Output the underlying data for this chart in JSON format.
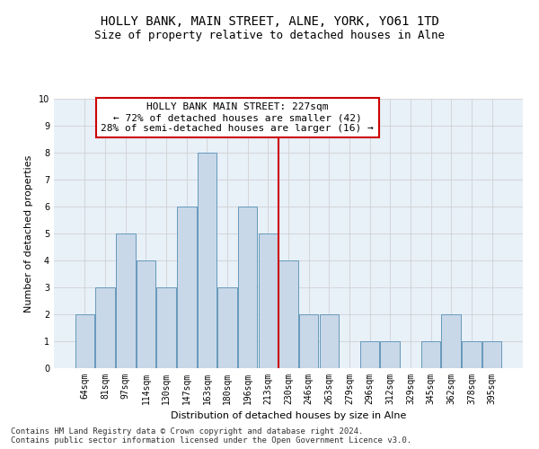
{
  "title": "HOLLY BANK, MAIN STREET, ALNE, YORK, YO61 1TD",
  "subtitle": "Size of property relative to detached houses in Alne",
  "xlabel": "Distribution of detached houses by size in Alne",
  "ylabel": "Number of detached properties",
  "categories": [
    "64sqm",
    "81sqm",
    "97sqm",
    "114sqm",
    "130sqm",
    "147sqm",
    "163sqm",
    "180sqm",
    "196sqm",
    "213sqm",
    "230sqm",
    "246sqm",
    "263sqm",
    "279sqm",
    "296sqm",
    "312sqm",
    "329sqm",
    "345sqm",
    "362sqm",
    "378sqm",
    "395sqm"
  ],
  "values": [
    2,
    3,
    5,
    4,
    3,
    6,
    8,
    3,
    6,
    5,
    4,
    2,
    2,
    0,
    1,
    1,
    0,
    1,
    2,
    1,
    1
  ],
  "bar_color": "#c8d8e8",
  "bar_edge_color": "#6699bb",
  "grid_color": "#cccccc",
  "vline_x_index": 10,
  "vline_color": "#cc0000",
  "annotation_text": "HOLLY BANK MAIN STREET: 227sqm\n← 72% of detached houses are smaller (42)\n28% of semi-detached houses are larger (16) →",
  "annotation_box_color": "#ffffff",
  "annotation_box_edge": "#cc0000",
  "footnote": "Contains HM Land Registry data © Crown copyright and database right 2024.\nContains public sector information licensed under the Open Government Licence v3.0.",
  "ylim": [
    0,
    10
  ],
  "yticks": [
    0,
    1,
    2,
    3,
    4,
    5,
    6,
    7,
    8,
    9,
    10
  ],
  "background_color": "#e8f0f8",
  "title_fontsize": 10,
  "subtitle_fontsize": 9,
  "axis_label_fontsize": 8,
  "tick_fontsize": 7,
  "annotation_fontsize": 8,
  "footnote_fontsize": 6.5
}
